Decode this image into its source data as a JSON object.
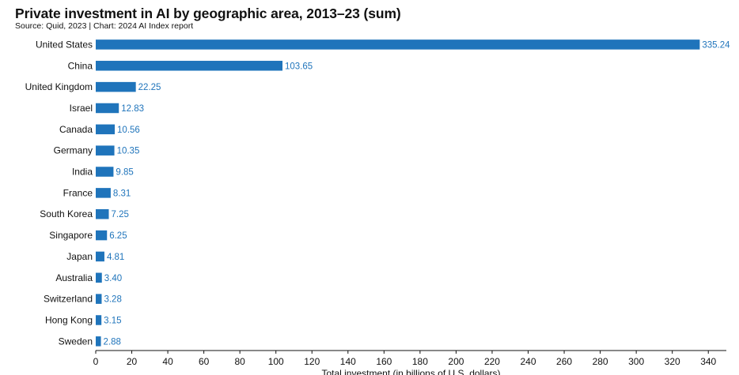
{
  "header": {
    "title": "Private investment in AI by geographic area, 2013–23 (sum)",
    "source": "Source: Quid, 2023 | Chart: 2024 AI Index report"
  },
  "chart_data": {
    "type": "bar",
    "orientation": "horizontal",
    "categories": [
      "United States",
      "China",
      "United Kingdom",
      "Israel",
      "Canada",
      "Germany",
      "India",
      "France",
      "South Korea",
      "Singapore",
      "Japan",
      "Australia",
      "Switzerland",
      "Hong Kong",
      "Sweden"
    ],
    "values": [
      335.24,
      103.65,
      22.25,
      12.83,
      10.56,
      10.35,
      9.85,
      8.31,
      7.25,
      6.25,
      4.81,
      3.4,
      3.28,
      3.15,
      2.88
    ],
    "value_labels": [
      "335.24",
      "103.65",
      "22.25",
      "12.83",
      "10.56",
      "10.35",
      "9.85",
      "8.31",
      "7.25",
      "6.25",
      "4.81",
      "3.40",
      "3.28",
      "3.15",
      "2.88"
    ],
    "xlim": [
      0,
      350
    ],
    "xticks": [
      0,
      20,
      40,
      60,
      80,
      100,
      120,
      140,
      160,
      180,
      200,
      220,
      240,
      260,
      280,
      300,
      320,
      340
    ],
    "xlabel": "Total investment (in billions of U.S. dollars)",
    "grid": false,
    "colors": {
      "bar": "#1f74bb",
      "label": "#1f74bb",
      "axis": "#111111"
    }
  }
}
